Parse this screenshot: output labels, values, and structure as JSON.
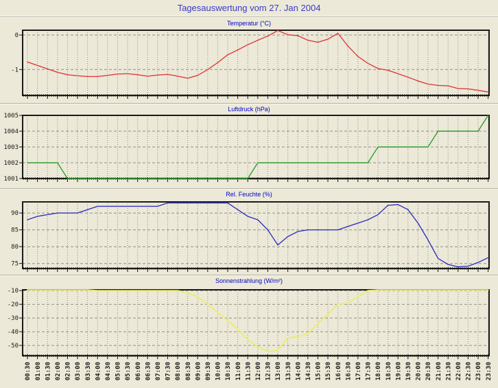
{
  "header": {
    "title": "Tagesauswertung vom 27. Jan 2004"
  },
  "colors": {
    "background": "#ece9d8",
    "plot_border": "#1a1a1a",
    "grid": "#8f8f85",
    "title": "#3a3ac8",
    "chart_title": "#0000c8",
    "axis_text": "#1a1a1a",
    "temperature_line": "#e03c3c",
    "pressure_line": "#2e9e2e",
    "humidity_line": "#3434c0",
    "radiation_line": "#ebeb7a"
  },
  "x_labels": [
    "00:30",
    "01:00",
    "01:30",
    "02:00",
    "02:30",
    "03:00",
    "03:30",
    "04:00",
    "04:30",
    "05:00",
    "05:30",
    "06:00",
    "06:30",
    "07:00",
    "07:30",
    "08:00",
    "08:30",
    "09:00",
    "09:30",
    "10:00",
    "10:30",
    "11:00",
    "11:30",
    "12:00",
    "12:30",
    "13:00",
    "13:30",
    "14:00",
    "14:30",
    "15:00",
    "15:30",
    "16:00",
    "16:30",
    "17:00",
    "17:30",
    "18:00",
    "18:30",
    "19:00",
    "19:30",
    "20:00",
    "20:30",
    "21:00",
    "21:30",
    "22:00",
    "22:30",
    "23:00",
    "23:30"
  ],
  "chart_data": [
    {
      "type": "line",
      "title": "Temperatur (°C)",
      "ylabel": "°C",
      "color": "#e03c3c",
      "line_width": 1.4,
      "y_ticks": [
        0,
        -1
      ],
      "ylim": [
        -1.75,
        0.14
      ],
      "grid": true,
      "values": [
        -0.78,
        -0.88,
        -0.98,
        -1.08,
        -1.15,
        -1.18,
        -1.2,
        -1.2,
        -1.17,
        -1.13,
        -1.12,
        -1.15,
        -1.19,
        -1.16,
        -1.14,
        -1.19,
        -1.25,
        -1.17,
        -1.0,
        -0.8,
        -0.57,
        -0.43,
        -0.28,
        -0.15,
        -0.03,
        0.13,
        0.01,
        -0.02,
        -0.15,
        -0.21,
        -0.12,
        0.05,
        -0.32,
        -0.62,
        -0.82,
        -0.97,
        -1.02,
        -1.12,
        -1.22,
        -1.33,
        -1.42,
        -1.46,
        -1.47,
        -1.55,
        -1.56,
        -1.6,
        -1.65
      ]
    },
    {
      "type": "line",
      "title": "Luftdruck (hPa)",
      "ylabel": "hPa",
      "color": "#2e9e2e",
      "line_width": 1.4,
      "y_ticks": [
        1005,
        1004,
        1003,
        1002,
        1001
      ],
      "ylim": [
        1001,
        1005
      ],
      "grid": true,
      "values": [
        1002,
        1002,
        1002,
        1002,
        1001,
        1001,
        1001,
        1001,
        1001,
        1001,
        1001,
        1001,
        1001,
        1001,
        1001,
        1001,
        1001,
        1001,
        1001,
        1001,
        1001,
        1001,
        1001,
        1002,
        1002,
        1002,
        1002,
        1002,
        1002,
        1002,
        1002,
        1002,
        1002,
        1002,
        1002,
        1003,
        1003,
        1003,
        1003,
        1003,
        1003,
        1004,
        1004,
        1004,
        1004,
        1004,
        1005
      ]
    },
    {
      "type": "line",
      "title": "Rel. Feuchte (%)",
      "ylabel": "%",
      "color": "#3434c0",
      "line_width": 1.4,
      "y_ticks": [
        90,
        85,
        80,
        75
      ],
      "ylim": [
        73.5,
        93.3
      ],
      "grid": true,
      "values": [
        88,
        89,
        89.5,
        90,
        90,
        90,
        91,
        92,
        92,
        92,
        92,
        92,
        92,
        92,
        93,
        93,
        93,
        93,
        93,
        93,
        93,
        91,
        89,
        88,
        85,
        80.5,
        83,
        84.5,
        85,
        85,
        85,
        85,
        86,
        87,
        88,
        89.5,
        92.3,
        92.5,
        91,
        87,
        82,
        76.5,
        74.7,
        74,
        74.2,
        75.3,
        76.7
      ]
    },
    {
      "type": "line",
      "title": "Sonnenstrahlung (W/m²)",
      "ylabel": "W/m²",
      "color": "#ebeb7a",
      "line_width": 2,
      "y_ticks": [
        -10,
        -20,
        -30,
        -40,
        -50
      ],
      "ylim": [
        -57.5,
        -9.4
      ],
      "grid": true,
      "values": [
        -9.5,
        -9.5,
        -9.5,
        -9.5,
        -9.5,
        -9.5,
        -9.5,
        -10,
        -10,
        -10,
        -10,
        -10,
        -10,
        -10,
        -10,
        -10,
        -11.5,
        -14.5,
        -20,
        -26,
        -32,
        -38,
        -46,
        -51,
        -54.5,
        -53.5,
        -44.5,
        -43.5,
        -41.5,
        -34,
        -27,
        -20,
        -19,
        -14.5,
        -10,
        -9.5,
        -9.5,
        -9.5,
        -9.5,
        -9.5,
        -9.5,
        -9.5,
        -9.5,
        -9.5,
        -9.5,
        -9.5,
        -9.5
      ]
    }
  ]
}
